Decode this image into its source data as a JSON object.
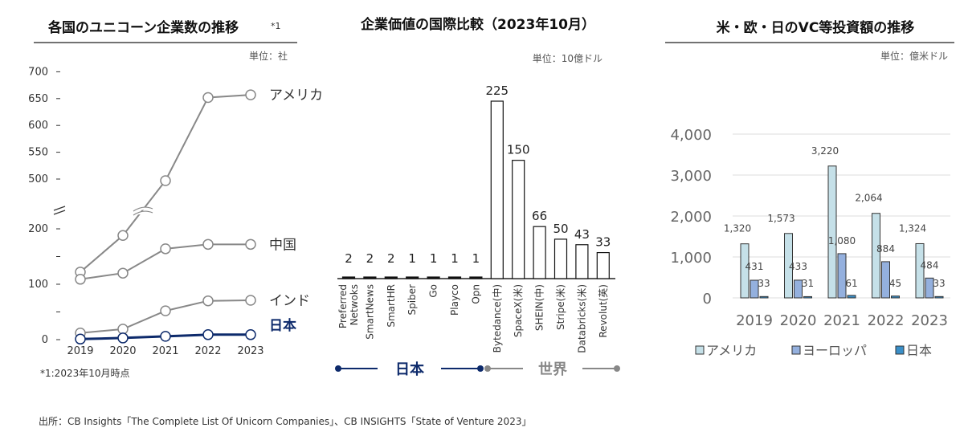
{
  "chart_data": [
    {
      "type": "line",
      "title": "各国のユニコーン企業数の推移",
      "title_note": "*1",
      "unit": "単位：社",
      "footnote": "*1:2023年10月時点",
      "x": [
        "2019",
        "2020",
        "2021",
        "2022",
        "2023"
      ],
      "yticks_lower": [
        "0",
        "",
        "100",
        "",
        "200"
      ],
      "yticks_upper": [
        "500",
        "550",
        "600",
        "650",
        "700"
      ],
      "axis_break": true,
      "series": [
        {
          "name": "アメリカ",
          "values": [
            122,
            188,
            497,
            652,
            657
          ],
          "color": "#888888"
        },
        {
          "name": "中国",
          "values": [
            109,
            120,
            164,
            172,
            172
          ],
          "color": "#888888"
        },
        {
          "name": "インド",
          "values": [
            12,
            19,
            52,
            70,
            71
          ],
          "color": "#888888"
        },
        {
          "name": "日本",
          "values": [
            1,
            3,
            6,
            9,
            9
          ],
          "color": "#0d2a6b"
        }
      ]
    },
    {
      "type": "bar",
      "title": "企業価値の国際比較（2023年10月）",
      "unit": "単位：10億ドル",
      "categories": [
        "Preferred\nNetwoks",
        "SmartNews",
        "SmartHR",
        "Spiber",
        "Go",
        "Playco",
        "Opn",
        "Bytedance(中)",
        "SpaceX(米)",
        "SHEIN(中)",
        "Stripe(米)",
        "Databricks(米)",
        "Revolut(英)"
      ],
      "values": [
        2,
        2,
        2,
        1,
        1,
        1,
        1,
        225,
        150,
        66,
        50,
        43,
        33
      ],
      "groups": [
        {
          "name": "日本",
          "color": "#0d2a6b"
        },
        {
          "name": "世界",
          "color": "#888888"
        }
      ]
    },
    {
      "type": "bar",
      "title": "米・欧・日のVC等投資額の推移",
      "unit": "単位：億米ドル",
      "categories": [
        "2019",
        "2020",
        "2021",
        "2022",
        "2023"
      ],
      "yticks": [
        "0",
        "1,000",
        "2,000",
        "3,000",
        "4,000"
      ],
      "ylim": [
        0,
        4000
      ],
      "grid": true,
      "legend": "bottom",
      "series": [
        {
          "name": "アメリカ",
          "values": [
            1320,
            1573,
            3220,
            2064,
            1324
          ],
          "labels": [
            "1,320",
            "1,573",
            "3,220",
            "2,064",
            "1,324"
          ],
          "color": "#c5e0e8"
        },
        {
          "name": "ヨーロッパ",
          "values": [
            431,
            433,
            1080,
            884,
            484
          ],
          "labels": [
            "431",
            "433",
            "1,080",
            "884",
            "484"
          ],
          "color": "#94b0de"
        },
        {
          "name": "日本",
          "values": [
            33,
            31,
            61,
            45,
            33
          ],
          "labels": [
            "33",
            "31",
            "61",
            "45",
            "33"
          ],
          "color": "#3a8fc8"
        }
      ]
    }
  ],
  "source": "出所：CB Insights「The Complete List Of Unicorn Companies」、CB INSIGHTS「State of Venture 2023」"
}
